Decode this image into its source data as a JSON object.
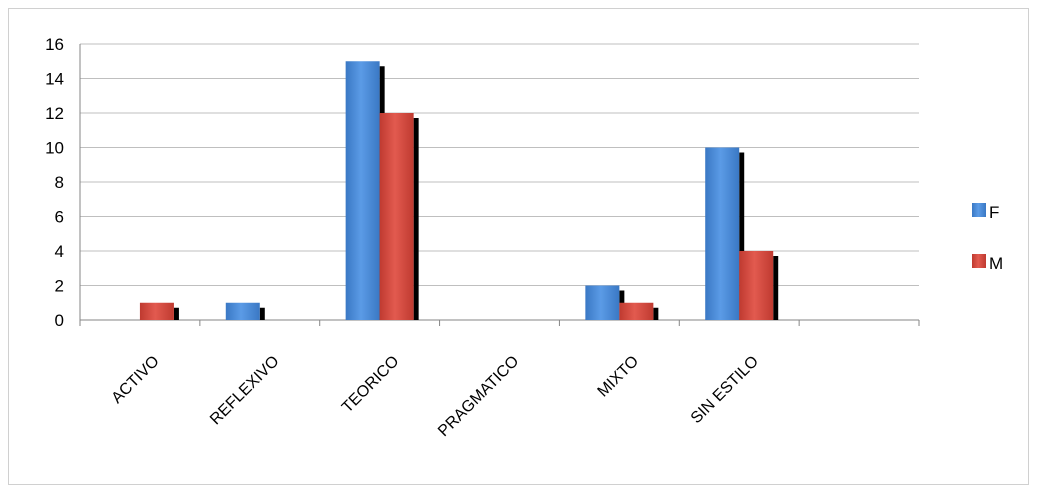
{
  "chart_data": {
    "type": "bar",
    "categories": [
      "ACTIVO",
      "REFLEXIVO",
      "TEORICO",
      "PRAGMATICO",
      "MIXTO",
      "SIN ESTILO",
      ""
    ],
    "series": [
      {
        "name": "F",
        "values": [
          0,
          1,
          15,
          0,
          2,
          10,
          0
        ]
      },
      {
        "name": "M",
        "values": [
          1,
          0,
          12,
          0,
          1,
          4,
          0
        ]
      }
    ],
    "ylim": [
      0,
      16
    ],
    "yticks": [
      "0",
      "2",
      "4",
      "6",
      "8",
      "10",
      "12",
      "14",
      "16"
    ],
    "grid": true,
    "legend_position": "right",
    "colors": {
      "F": "#4a89d6",
      "M": "#d5483e",
      "shadow": "#000000",
      "grid": "#bfbfbf",
      "axis": "#868686"
    }
  }
}
